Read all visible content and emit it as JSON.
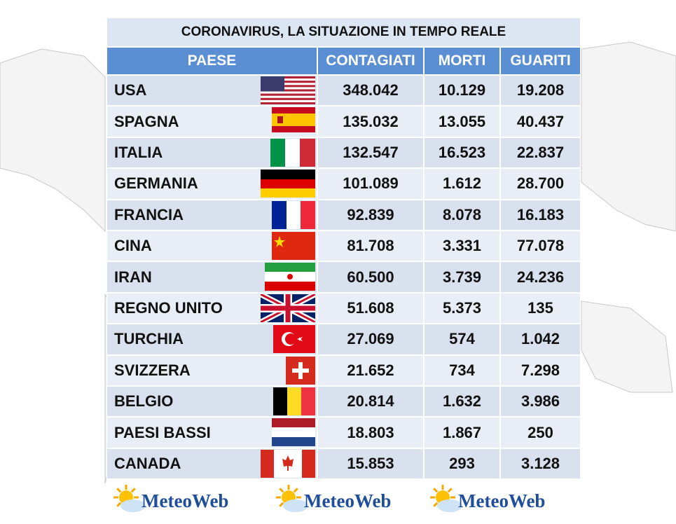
{
  "table": {
    "title": "CORONAVIRUS, LA SITUAZIONE IN TEMPO REALE",
    "header": [
      "PAESE",
      "CONTAGIATI",
      "MORTI",
      "GUARITI"
    ],
    "rows": [
      [
        "USA",
        "348.042",
        "10.129",
        "19.208"
      ],
      [
        "SPAGNA",
        "135.032",
        "13.055",
        "40.437"
      ],
      [
        "ITALIA",
        "132.547",
        "16.523",
        "22.837"
      ],
      [
        "GERMANIA",
        "101.089",
        "1.612",
        "28.700"
      ],
      [
        "FRANCIA",
        "92.839",
        "8.078",
        "16.183"
      ],
      [
        "CINA",
        "81.708",
        "3.331",
        "77.078"
      ],
      [
        "IRAN",
        "60.500",
        "3.739",
        "24.236"
      ],
      [
        "REGNO UNITO",
        "51.608",
        "5.373",
        "135"
      ],
      [
        "TURCHIA",
        "27.069",
        "574",
        "1.042"
      ],
      [
        "SVIZZERA",
        "21.652",
        "734",
        "7.298"
      ],
      [
        "BELGIO",
        "20.814",
        "1.632",
        "3.986"
      ],
      [
        "PAESI BASSI",
        "18.803",
        "1.867",
        "250"
      ],
      [
        "CANADA",
        "15.853",
        "293",
        "3.128"
      ]
    ]
  },
  "footer": {
    "logos": [
      "MeteoWeb",
      "MeteoWeb",
      "MeteoWeb"
    ]
  }
}
